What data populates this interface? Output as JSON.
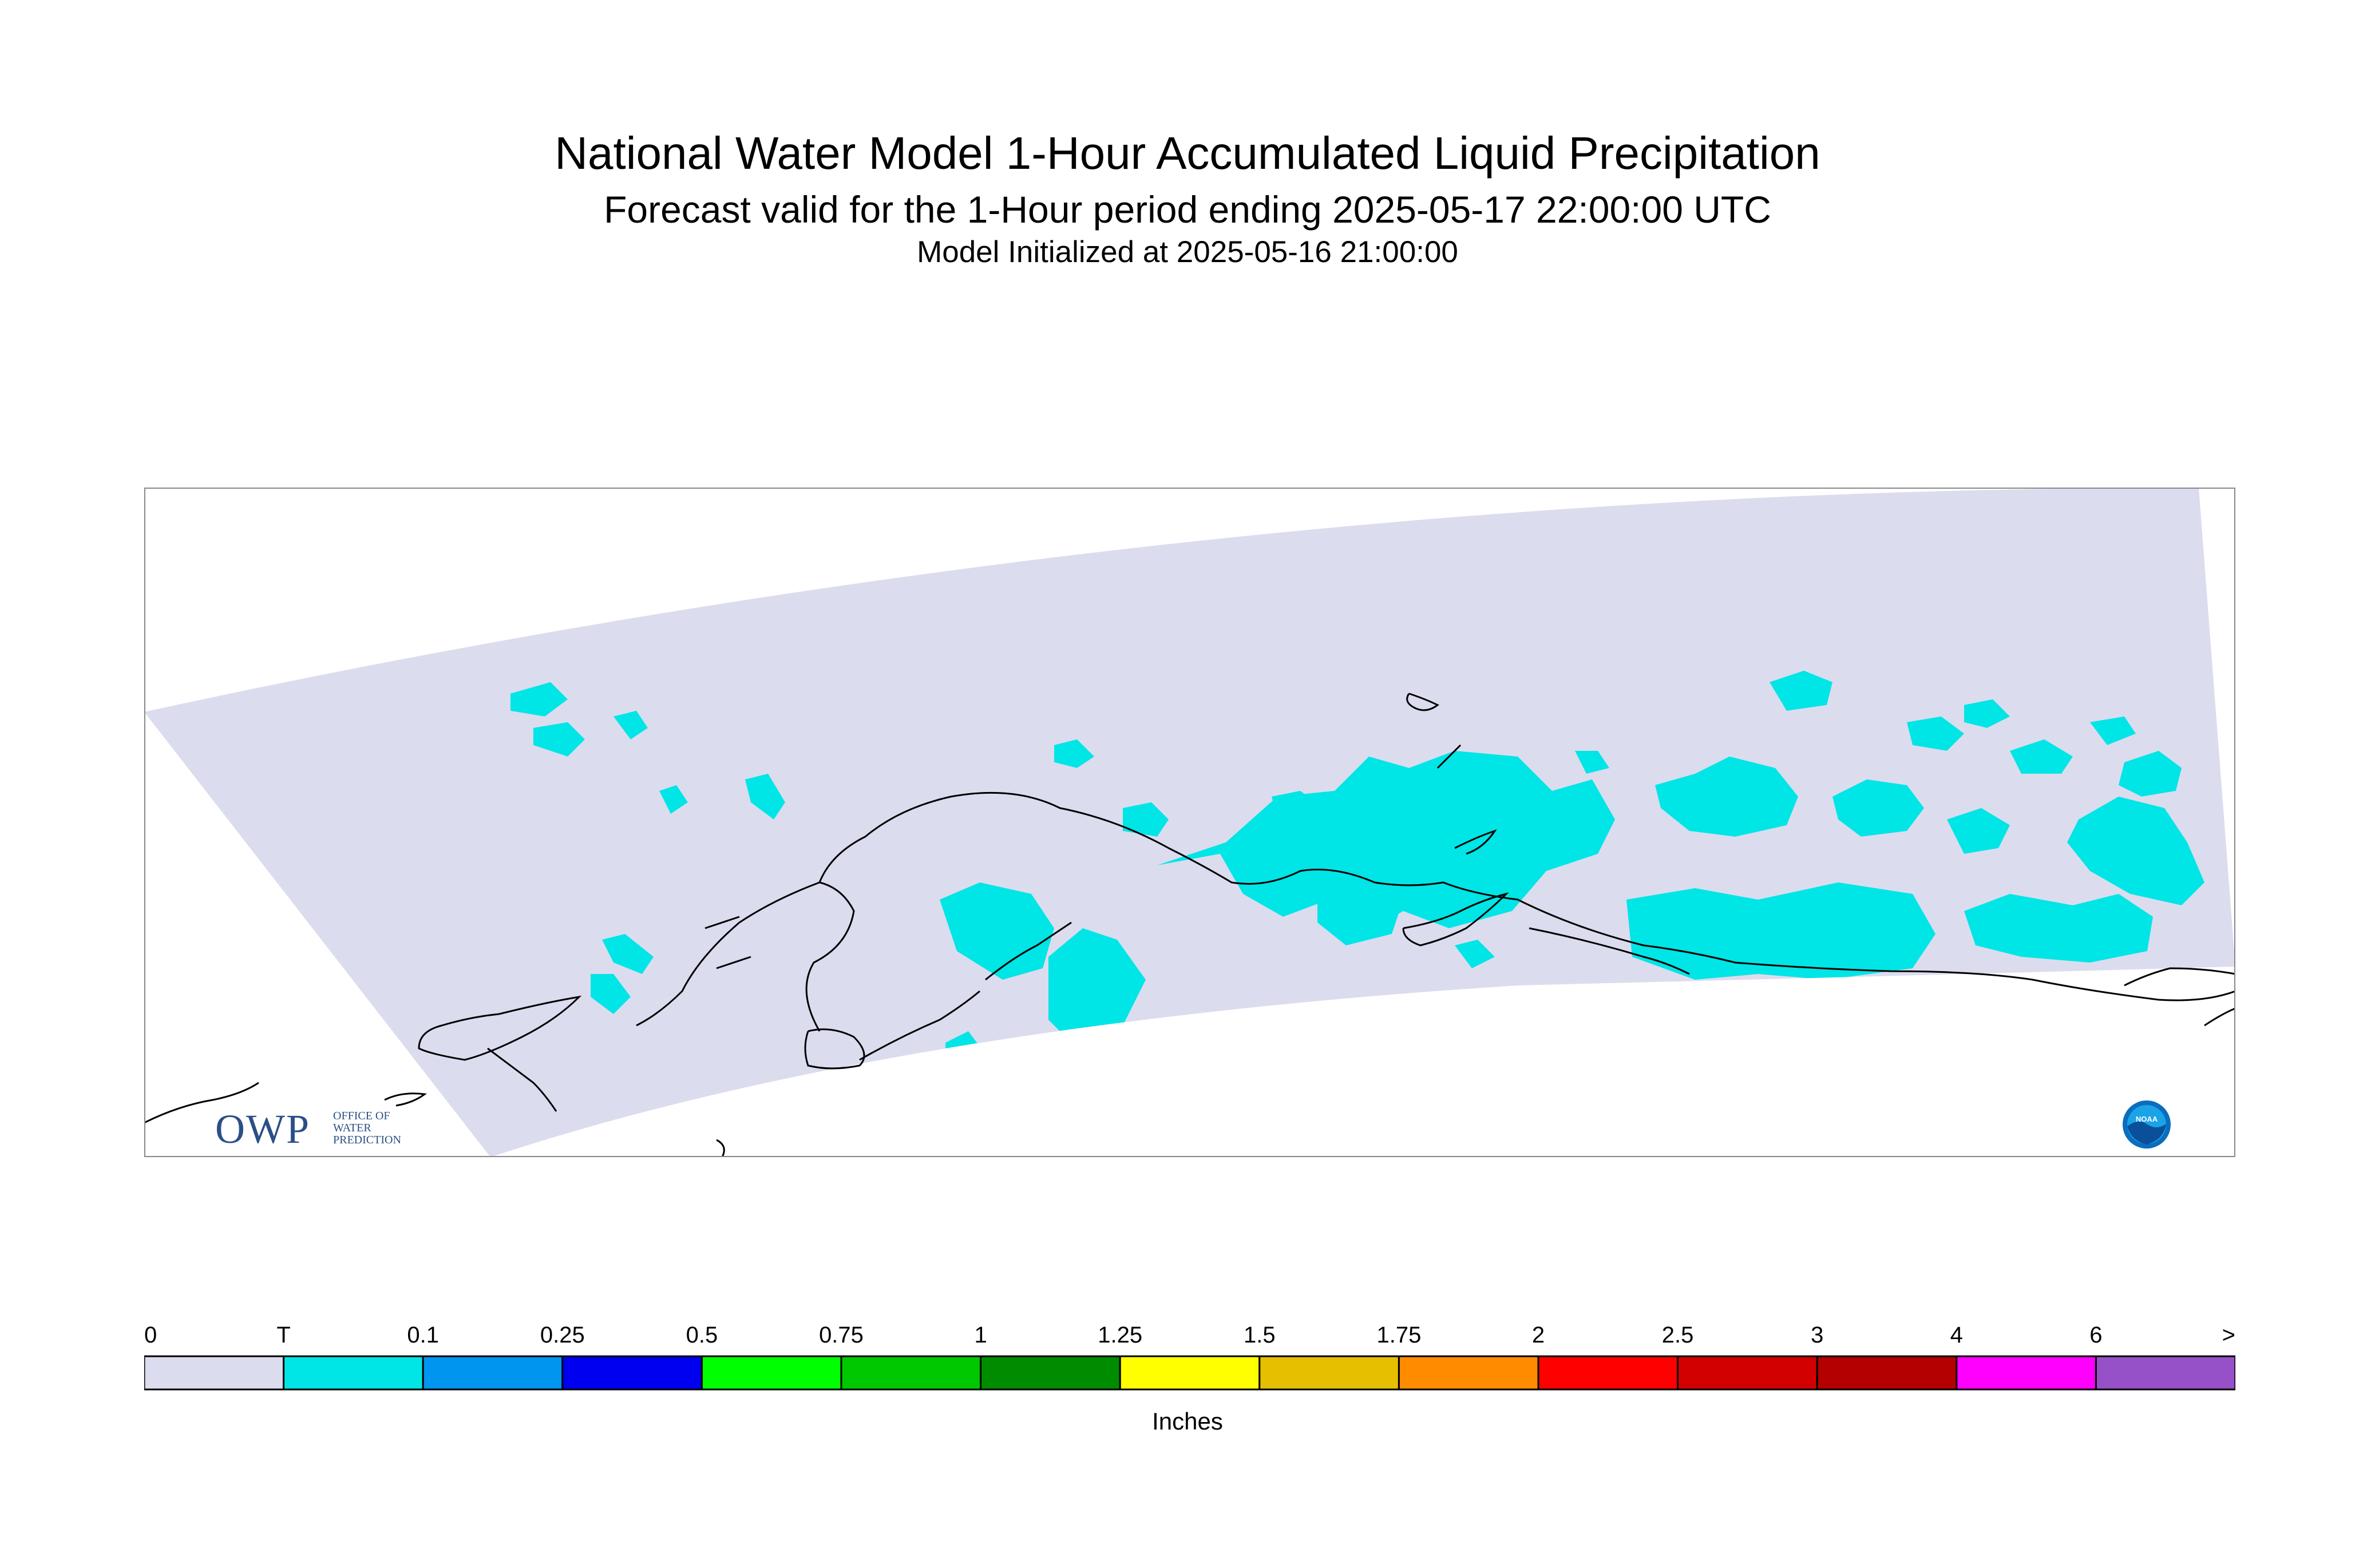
{
  "title": "National Water Model 1-Hour Accumulated Liquid Precipitation",
  "subtitle": "Forecast valid for the 1-Hour period ending 2025-05-17 22:00:00 UTC",
  "init_line": "Model Initialized at 2025-05-16 21:00:00",
  "logo": {
    "owp_letters": "OWP",
    "owp_lines": [
      "OFFICE OF",
      "WATER",
      "PREDICTION"
    ],
    "noaa_text": "NOAA"
  },
  "colors": {
    "domain_fill": "#dcdcef",
    "precip_trace": "#00e5e5",
    "coastline": "#000000"
  },
  "legend": {
    "units": "Inches",
    "labels": [
      "0",
      "T",
      "0.1",
      "0.25",
      "0.5",
      "0.75",
      "1",
      "1.25",
      "1.5",
      "1.75",
      "2",
      "2.5",
      "3",
      "4",
      "6",
      ">"
    ],
    "colors": [
      "#dcdcef",
      "#00e5e5",
      "#0096f0",
      "#0000f0",
      "#00ff00",
      "#00c800",
      "#008c00",
      "#ffff00",
      "#e6bf00",
      "#ff8c00",
      "#ff0000",
      "#d20000",
      "#b40000",
      "#ff00ff",
      "#9650c8"
    ]
  }
}
